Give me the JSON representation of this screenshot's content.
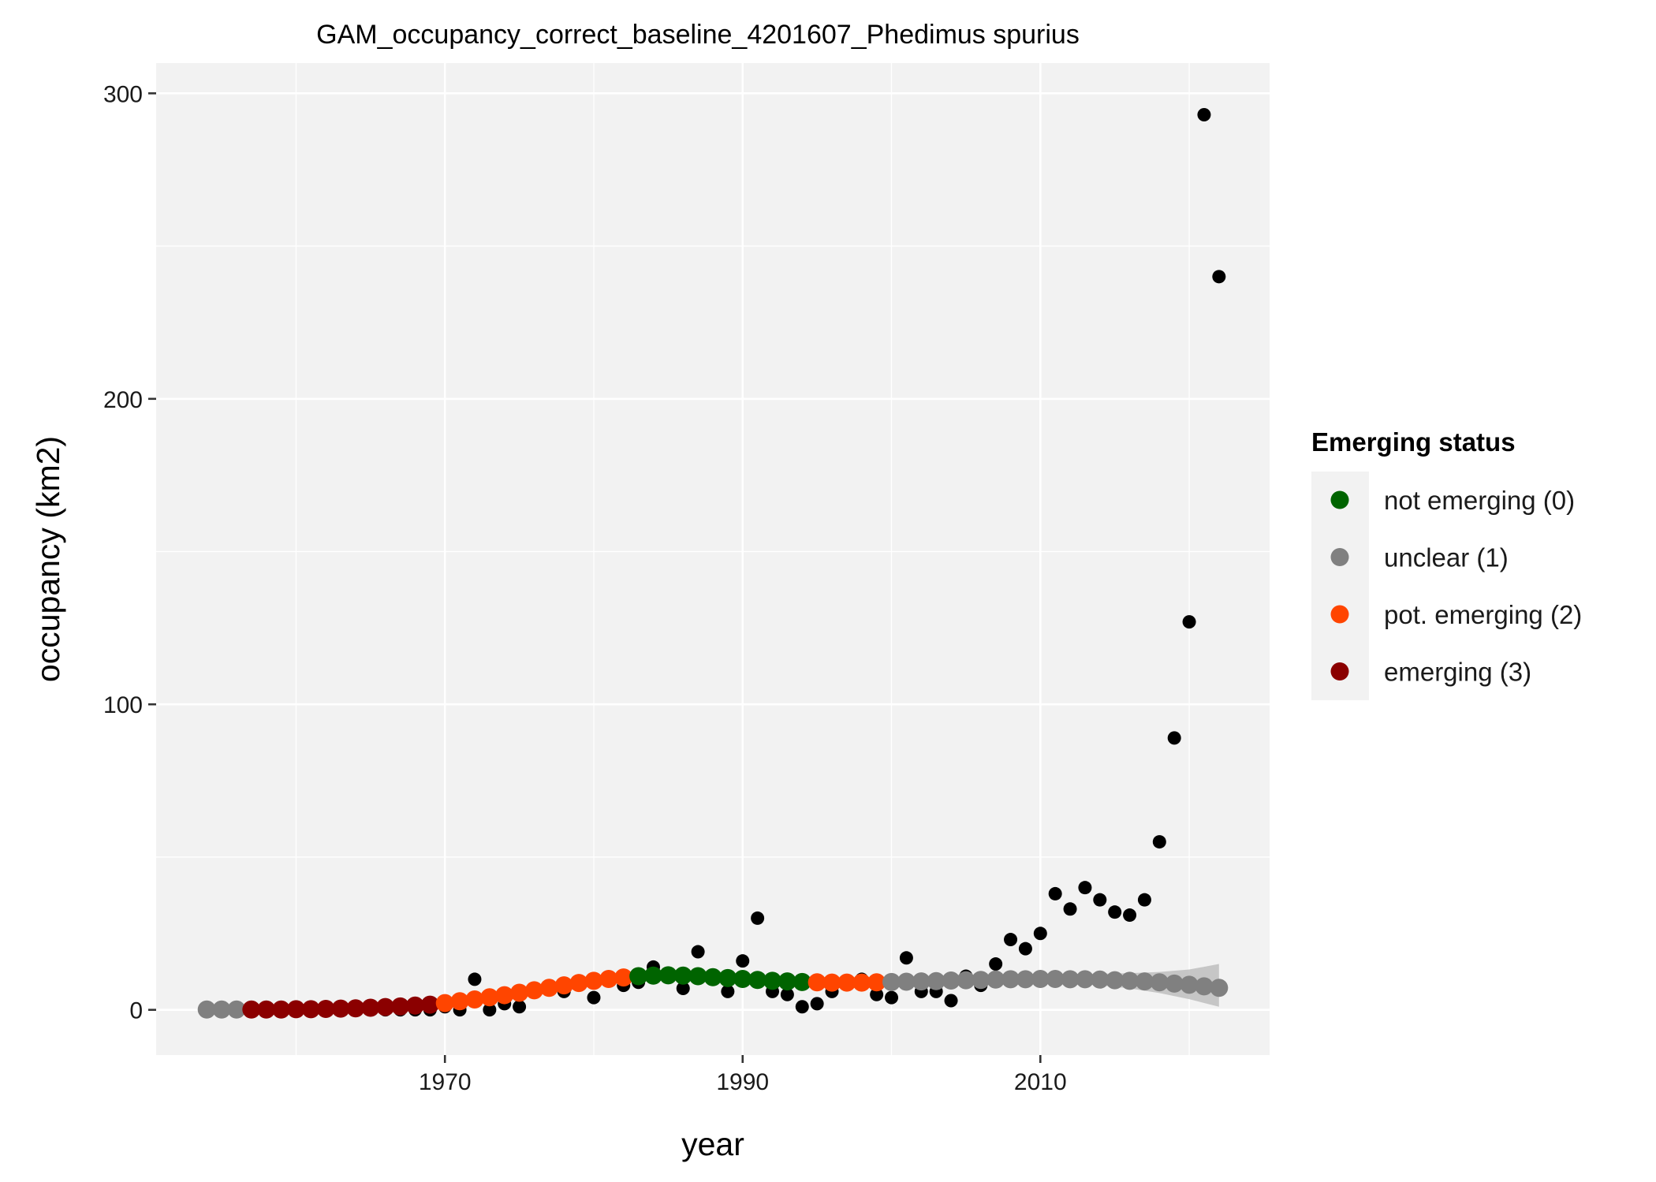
{
  "chart_data": {
    "type": "scatter",
    "title": "GAM_occupancy_correct_baseline_4201607_Phedimus spurius",
    "xlabel": "year",
    "ylabel": "occupancy (km2)",
    "xlim": [
      1950.6,
      2025.4
    ],
    "ylim": [
      -14.8,
      309.9
    ],
    "x_ticks": [
      1970,
      1990,
      2010
    ],
    "y_ticks": [
      0,
      100,
      200,
      300
    ],
    "grid": true,
    "legend": {
      "title": "Emerging status",
      "placement": "right",
      "entries": [
        {
          "key": "0",
          "label": "not emerging (0)",
          "color": "#006400"
        },
        {
          "key": "1",
          "label": "unclear (1)",
          "color": "#808080"
        },
        {
          "key": "2",
          "label": "pot. emerging (2)",
          "color": "#FF4500"
        },
        {
          "key": "3",
          "label": "emerging (3)",
          "color": "#8B0000"
        }
      ]
    },
    "observed": {
      "color": "#000000",
      "points": [
        [
          1954,
          0
        ],
        [
          1955,
          0
        ],
        [
          1956,
          0
        ],
        [
          1957,
          0
        ],
        [
          1958,
          0
        ],
        [
          1959,
          0
        ],
        [
          1960,
          0
        ],
        [
          1961,
          0
        ],
        [
          1962,
          0
        ],
        [
          1963,
          0
        ],
        [
          1964,
          0
        ],
        [
          1965,
          0
        ],
        [
          1966,
          0
        ],
        [
          1967,
          0
        ],
        [
          1968,
          0
        ],
        [
          1969,
          0
        ],
        [
          1970,
          1
        ],
        [
          1971,
          0
        ],
        [
          1972,
          10
        ],
        [
          1973,
          0
        ],
        [
          1974,
          2
        ],
        [
          1975,
          1
        ],
        [
          1976,
          6
        ],
        [
          1977,
          7
        ],
        [
          1978,
          6
        ],
        [
          1979,
          9
        ],
        [
          1980,
          4
        ],
        [
          1981,
          10
        ],
        [
          1982,
          8
        ],
        [
          1983,
          9
        ],
        [
          1984,
          14
        ],
        [
          1985,
          11
        ],
        [
          1986,
          7
        ],
        [
          1987,
          19
        ],
        [
          1988,
          11
        ],
        [
          1989,
          6
        ],
        [
          1990,
          16
        ],
        [
          1991,
          30
        ],
        [
          1992,
          6
        ],
        [
          1993,
          5
        ],
        [
          1994,
          1
        ],
        [
          1995,
          2
        ],
        [
          1996,
          6
        ],
        [
          1997,
          9
        ],
        [
          1998,
          10
        ],
        [
          1999,
          5
        ],
        [
          2000,
          4
        ],
        [
          2001,
          17
        ],
        [
          2002,
          6
        ],
        [
          2003,
          6
        ],
        [
          2004,
          3
        ],
        [
          2005,
          11
        ],
        [
          2006,
          8
        ],
        [
          2007,
          15
        ],
        [
          2008,
          23
        ],
        [
          2009,
          20
        ],
        [
          2010,
          25
        ],
        [
          2011,
          38
        ],
        [
          2012,
          33
        ],
        [
          2013,
          40
        ],
        [
          2014,
          36
        ],
        [
          2015,
          32
        ],
        [
          2016,
          31
        ],
        [
          2017,
          36
        ],
        [
          2018,
          55
        ],
        [
          2019,
          89
        ],
        [
          2020,
          127
        ],
        [
          2021,
          293
        ],
        [
          2022,
          240
        ]
      ]
    },
    "fitted": {
      "status_by_year": [
        [
          1954,
          1953,
          1
        ],
        [
          1957,
          1969,
          3
        ],
        [
          1970,
          1982,
          2
        ],
        [
          1983,
          1994,
          0
        ],
        [
          1995,
          1999,
          2
        ],
        [
          2000,
          2022,
          1
        ]
      ],
      "points": [
        [
          1954,
          0.1
        ],
        [
          1955,
          0.1
        ],
        [
          1956,
          0.1
        ],
        [
          1957,
          0.1
        ],
        [
          1958,
          0.1
        ],
        [
          1959,
          0.1
        ],
        [
          1960,
          0.2
        ],
        [
          1961,
          0.2
        ],
        [
          1962,
          0.3
        ],
        [
          1963,
          0.4
        ],
        [
          1964,
          0.5
        ],
        [
          1965,
          0.7
        ],
        [
          1966,
          0.9
        ],
        [
          1967,
          1.1
        ],
        [
          1968,
          1.4
        ],
        [
          1969,
          1.7
        ],
        [
          1970,
          2.2
        ],
        [
          1971,
          2.8
        ],
        [
          1972,
          3.4
        ],
        [
          1973,
          4.1
        ],
        [
          1974,
          4.8
        ],
        [
          1975,
          5.6
        ],
        [
          1976,
          6.4
        ],
        [
          1977,
          7.2
        ],
        [
          1978,
          8.0
        ],
        [
          1979,
          8.8
        ],
        [
          1980,
          9.5
        ],
        [
          1981,
          10.1
        ],
        [
          1982,
          10.6
        ],
        [
          1983,
          11.0
        ],
        [
          1984,
          11.2
        ],
        [
          1985,
          11.3
        ],
        [
          1986,
          11.2
        ],
        [
          1987,
          11.0
        ],
        [
          1988,
          10.7
        ],
        [
          1989,
          10.4
        ],
        [
          1990,
          10.1
        ],
        [
          1991,
          9.8
        ],
        [
          1992,
          9.5
        ],
        [
          1993,
          9.3
        ],
        [
          1994,
          9.1
        ],
        [
          1995,
          9.0
        ],
        [
          1996,
          8.9
        ],
        [
          1997,
          8.9
        ],
        [
          1998,
          8.9
        ],
        [
          1999,
          9.0
        ],
        [
          2000,
          9.1
        ],
        [
          2001,
          9.2
        ],
        [
          2002,
          9.3
        ],
        [
          2003,
          9.4
        ],
        [
          2004,
          9.6
        ],
        [
          2005,
          9.7
        ],
        [
          2006,
          9.8
        ],
        [
          2007,
          9.9
        ],
        [
          2008,
          10.0
        ],
        [
          2009,
          10.0
        ],
        [
          2010,
          10.1
        ],
        [
          2011,
          10.1
        ],
        [
          2012,
          10.0
        ],
        [
          2013,
          10.0
        ],
        [
          2014,
          9.9
        ],
        [
          2015,
          9.7
        ],
        [
          2016,
          9.5
        ],
        [
          2017,
          9.3
        ],
        [
          2018,
          9.0
        ],
        [
          2019,
          8.6
        ],
        [
          2020,
          8.2
        ],
        [
          2021,
          7.7
        ],
        [
          2022,
          7.2
        ]
      ],
      "ribbon": {
        "color": "#BEBEBE",
        "x": [
          2004,
          2006,
          2008,
          2010,
          2012,
          2014,
          2016,
          2018,
          2020,
          2022
        ],
        "lower": [
          9.3,
          9.3,
          9.2,
          9.0,
          8.6,
          8.0,
          7.0,
          5.5,
          3.5,
          1.0
        ],
        "upper": [
          9.9,
          10.3,
          10.8,
          11.2,
          11.5,
          11.8,
          12.0,
          12.4,
          13.2,
          15.0
        ]
      }
    }
  }
}
